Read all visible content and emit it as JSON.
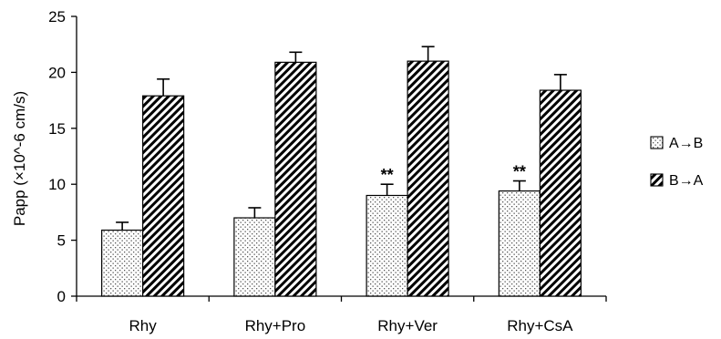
{
  "chart_data": {
    "type": "bar",
    "title": "",
    "xlabel": "",
    "ylabel": "Papp (×10^-6 cm/s)",
    "ylim": [
      0,
      25
    ],
    "yticks": [
      "0",
      "5",
      "10",
      "15",
      "20",
      "25"
    ],
    "categories": [
      "Rhy",
      "Rhy+Pro",
      "Rhy+Ver",
      "Rhy+CsA"
    ],
    "series": [
      {
        "name": "A→B",
        "values": [
          5.9,
          7.0,
          9.0,
          9.4
        ],
        "errors": [
          0.7,
          0.9,
          1.0,
          0.9
        ],
        "pattern": "dots",
        "annotations": [
          "",
          "",
          "**",
          "**"
        ]
      },
      {
        "name": "B→A",
        "values": [
          17.9,
          20.9,
          21.0,
          18.4
        ],
        "errors": [
          1.5,
          0.9,
          1.3,
          1.4
        ],
        "pattern": "diagonal-hatch",
        "annotations": [
          "",
          "",
          "",
          ""
        ]
      }
    ],
    "legend": {
      "placement": "right",
      "entries": [
        "A→B",
        "B→A"
      ]
    },
    "grid": false
  }
}
